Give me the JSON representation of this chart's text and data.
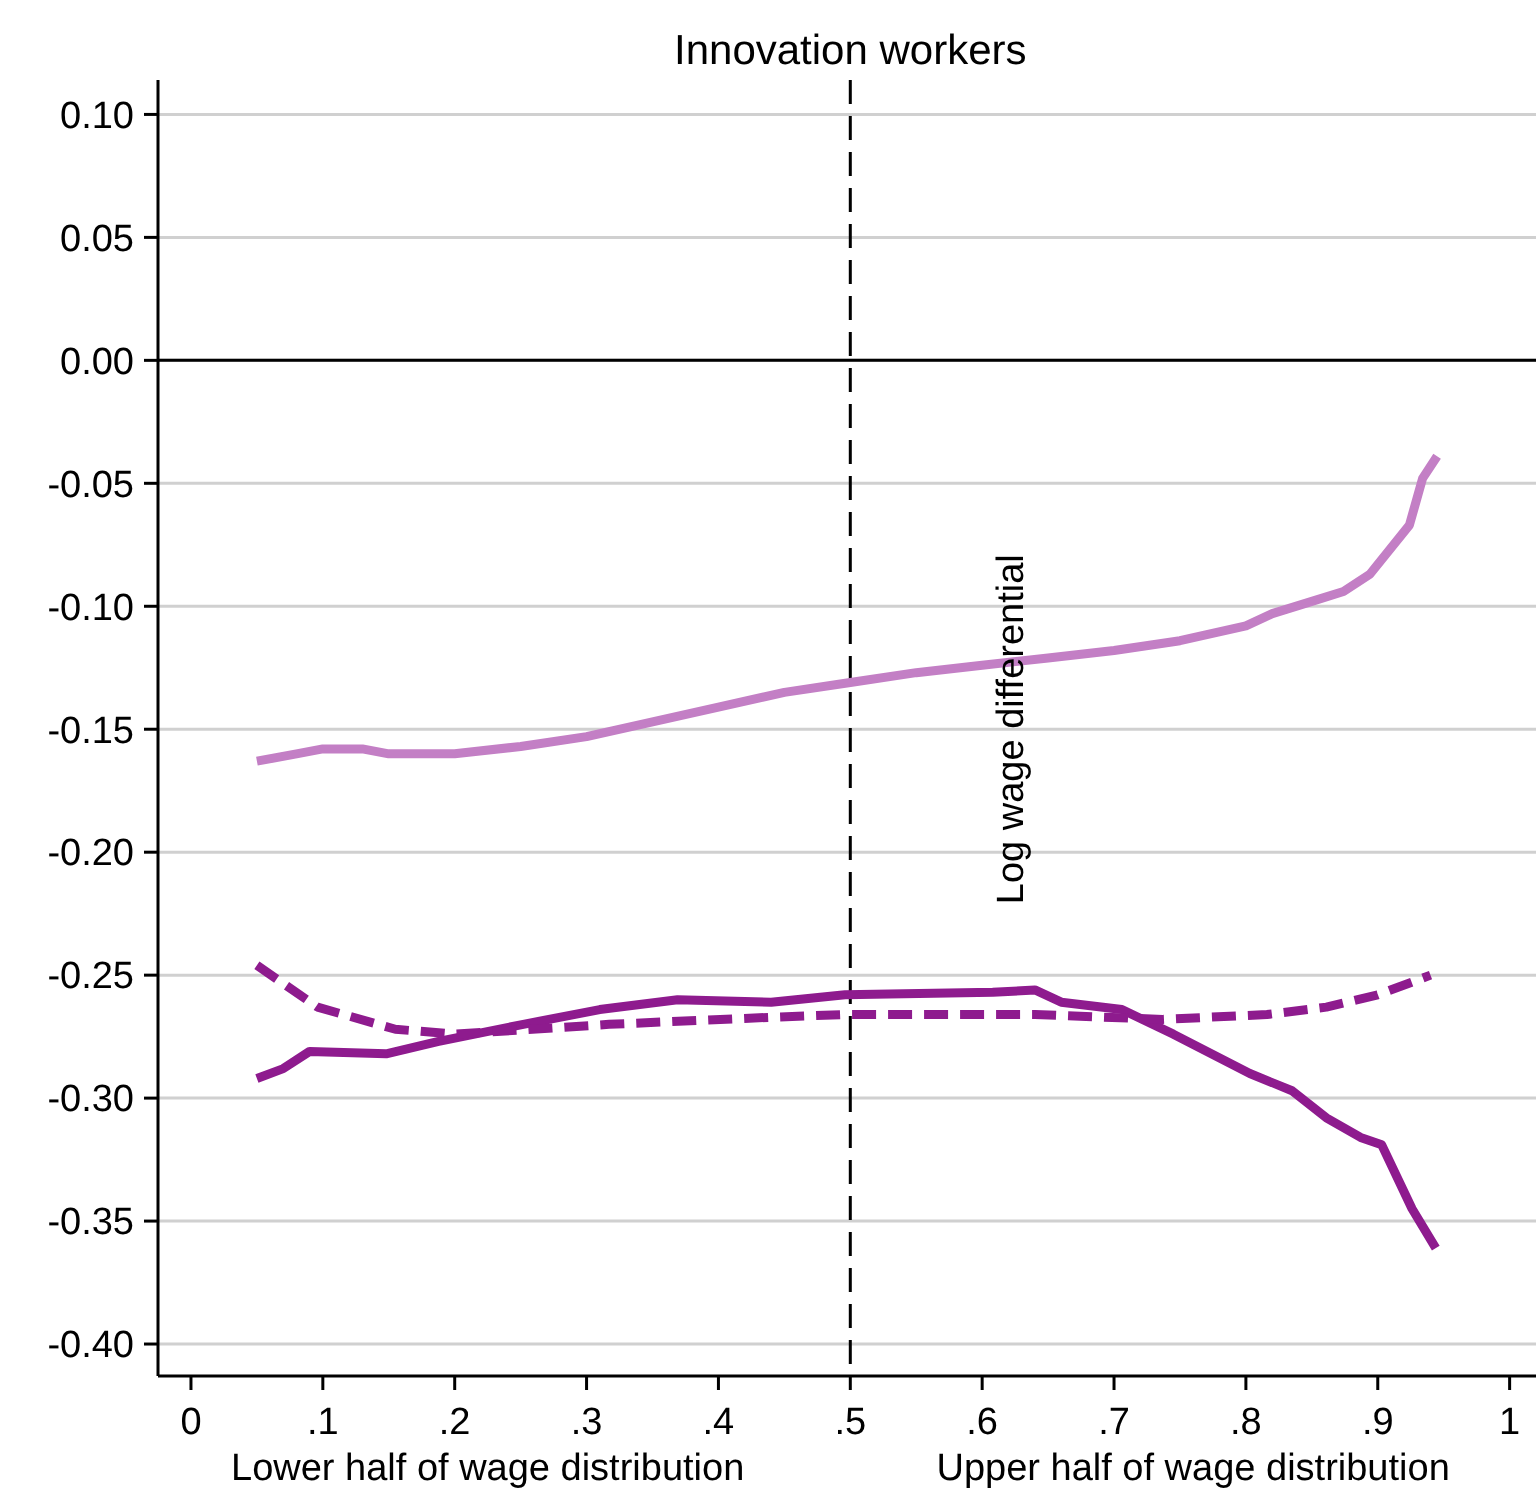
{
  "chart_data": {
    "type": "line",
    "title": "Innovation workers",
    "ylabel": "Log wage differential",
    "annotations": [
      "Lower half of wage distribution",
      "Upper half of wage distribution"
    ],
    "xlim": [
      -0.025,
      1.02
    ],
    "ylim": [
      -0.413,
      0.114
    ],
    "xticks": [
      0,
      {
        "value": 0.1,
        "label": ".1"
      },
      {
        "value": 0.2,
        "label": ".2"
      },
      {
        "value": 0.3,
        "label": ".3"
      },
      {
        "value": 0.4,
        "label": ".4"
      },
      {
        "value": 0.5,
        "label": ".5"
      },
      {
        "value": 0.6,
        "label": ".6"
      },
      {
        "value": 0.7,
        "label": ".7"
      },
      {
        "value": 0.8,
        "label": ".8"
      },
      {
        "value": 0.9,
        "label": ".9"
      },
      1
    ],
    "yticks": [
      {
        "value": -0.4,
        "label": "-0.40"
      },
      {
        "value": -0.35,
        "label": "-0.35"
      },
      {
        "value": -0.3,
        "label": "-0.30"
      },
      {
        "value": -0.25,
        "label": "-0.25"
      },
      {
        "value": -0.2,
        "label": "-0.20"
      },
      {
        "value": -0.15,
        "label": "-0.15"
      },
      {
        "value": -0.1,
        "label": "-0.10"
      },
      {
        "value": -0.05,
        "label": "-0.05"
      },
      {
        "value": 0,
        "label": "0.00"
      },
      {
        "value": 0.05,
        "label": "0.05"
      },
      {
        "value": 0.1,
        "label": "0.10"
      }
    ],
    "grid": "y",
    "marker": "none",
    "ref_lines": [
      {
        "axis": "x",
        "value": 0.5,
        "color": "#000000",
        "line_style": "dashed"
      },
      {
        "axis": "y",
        "value": 0,
        "color": "#000000",
        "line_style": "solid"
      }
    ],
    "series": [
      {
        "color": "#c37fc5",
        "line_style": "solid",
        "x": [
          0.05,
          0.08,
          0.1,
          0.13,
          0.15,
          0.2,
          0.25,
          0.3,
          0.35,
          0.4,
          0.45,
          0.5,
          0.55,
          0.6,
          0.65,
          0.7,
          0.75,
          0.8,
          0.82,
          0.85,
          0.874,
          0.894,
          0.924,
          0.934,
          0.945
        ],
        "values": [
          -0.163,
          -0.16,
          -0.158,
          -0.158,
          -0.16,
          -0.16,
          -0.157,
          -0.153,
          -0.147,
          -0.141,
          -0.135,
          -0.131,
          -0.127,
          -0.124,
          -0.121,
          -0.118,
          -0.114,
          -0.108,
          -0.103,
          -0.098,
          -0.094,
          -0.087,
          -0.067,
          -0.048,
          -0.039
        ]
      },
      {
        "color": "#8e1b8e",
        "line_style": "solid",
        "x": [
          0.05,
          0.07,
          0.09,
          0.148,
          0.187,
          0.252,
          0.31,
          0.369,
          0.44,
          0.496,
          0.608,
          0.64,
          0.66,
          0.706,
          0.745,
          0.803,
          0.835,
          0.861,
          0.887,
          0.903,
          0.926,
          0.944
        ],
        "values": [
          -0.292,
          -0.288,
          -0.281,
          -0.282,
          -0.277,
          -0.27,
          -0.264,
          -0.26,
          -0.261,
          -0.258,
          -0.257,
          -0.256,
          -0.261,
          -0.264,
          -0.274,
          -0.29,
          -0.297,
          -0.308,
          -0.316,
          -0.319,
          -0.345,
          -0.361
        ]
      },
      {
        "color": "#8e1b8e",
        "line_style": "dashed",
        "x": [
          0.05,
          0.096,
          0.155,
          0.2,
          0.317,
          0.446,
          0.496,
          0.64,
          0.737,
          0.816,
          0.861,
          0.9,
          0.94
        ],
        "values": [
          -0.246,
          -0.263,
          -0.272,
          -0.274,
          -0.27,
          -0.267,
          -0.266,
          -0.266,
          -0.268,
          -0.266,
          -0.263,
          -0.258,
          -0.25
        ]
      }
    ]
  }
}
